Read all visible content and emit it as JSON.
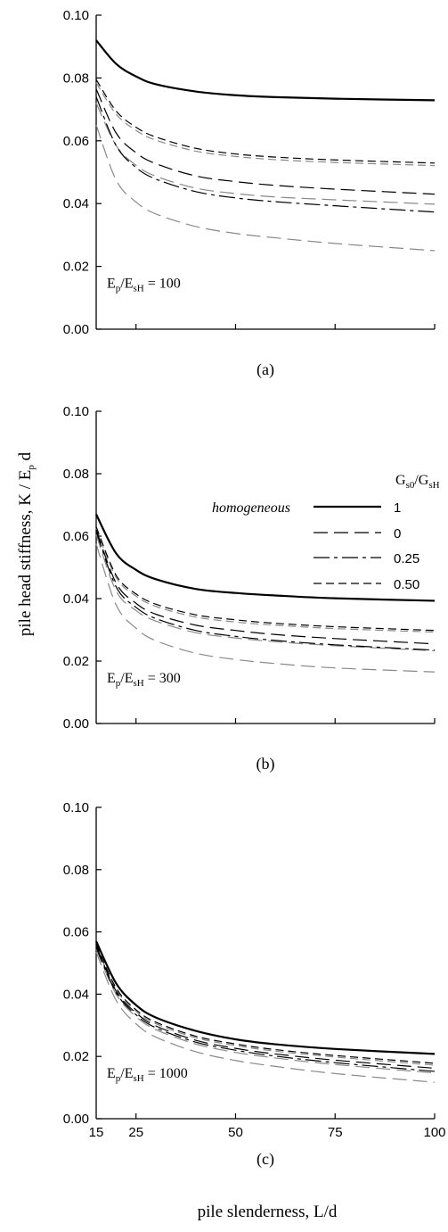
{
  "figure": {
    "ylabel": "pile head stiffness, K / E",
    "ylabel_sub": "p",
    "ylabel_tail": " d",
    "xlabel": "pile slenderness, L/d"
  },
  "legend": {
    "title": "G",
    "title_sub1": "s0",
    "title_mid": "/G",
    "title_sub2": "sH",
    "homogeneous_label": "homogeneous",
    "entries": [
      {
        "value": "1",
        "dash": "solid",
        "width": 2.2
      },
      {
        "value": "0",
        "dash": "long",
        "width": 1.2
      },
      {
        "value": "0.25",
        "dash": "longshort",
        "width": 1.2
      },
      {
        "value": "0.50",
        "dash": "medium",
        "width": 1.2
      }
    ]
  },
  "chart_data": [
    {
      "type": "line",
      "panel": "(a)",
      "annotation": {
        "pre": "E",
        "sub1": "p",
        "mid": "/E",
        "sub2": "sH",
        "post": " = 100"
      },
      "xlim": [
        15,
        100
      ],
      "ylim": [
        0,
        0.1
      ],
      "yticks": [
        "0.00",
        "0.02",
        "0.04",
        "0.06",
        "0.08",
        "0.10"
      ],
      "xticks": [],
      "x": [
        15,
        20,
        25,
        30,
        40,
        50,
        60,
        75,
        100
      ],
      "series": [
        {
          "style": "solid",
          "color": "#000000",
          "values": [
            0.092,
            0.0845,
            0.0805,
            0.078,
            0.0757,
            0.0745,
            0.0739,
            0.0734,
            0.0729
          ]
        },
        {
          "style": "medium",
          "color": "#000000",
          "values": [
            0.0795,
            0.0695,
            0.0643,
            0.0612,
            0.0576,
            0.0558,
            0.0548,
            0.0539,
            0.0529
          ]
        },
        {
          "style": "medium",
          "color": "#888888",
          "values": [
            0.0785,
            0.0685,
            0.0633,
            0.0602,
            0.0567,
            0.055,
            0.054,
            0.0531,
            0.0521
          ]
        },
        {
          "style": "long",
          "color": "#000000",
          "values": [
            0.0765,
            0.0625,
            0.0562,
            0.0527,
            0.0488,
            0.047,
            0.0458,
            0.0446,
            0.043
          ]
        },
        {
          "style": "longshort",
          "color": "#000000",
          "values": [
            0.074,
            0.0585,
            0.0515,
            0.0478,
            0.0438,
            0.0418,
            0.0406,
            0.0393,
            0.0373
          ]
        },
        {
          "style": "long",
          "color": "#888888",
          "values": [
            0.072,
            0.0585,
            0.0522,
            0.0487,
            0.0449,
            0.0432,
            0.0421,
            0.0412,
            0.0398
          ]
        },
        {
          "style": "long",
          "color": "#888888",
          "values": [
            0.065,
            0.0475,
            0.0405,
            0.0367,
            0.0327,
            0.0305,
            0.0291,
            0.0273,
            0.025
          ]
        }
      ]
    },
    {
      "type": "line",
      "panel": "(b)",
      "annotation": {
        "pre": "E",
        "sub1": "p",
        "mid": "/E",
        "sub2": "sH",
        "post": " = 300"
      },
      "xlim": [
        15,
        100
      ],
      "ylim": [
        0,
        0.1
      ],
      "yticks": [
        "0.00",
        "0.02",
        "0.04",
        "0.06",
        "0.08",
        "0.10"
      ],
      "xticks": [],
      "x": [
        15,
        20,
        25,
        30,
        40,
        50,
        60,
        75,
        100
      ],
      "series": [
        {
          "style": "solid",
          "color": "#000000",
          "values": [
            0.067,
            0.0545,
            0.0492,
            0.0462,
            0.0431,
            0.0418,
            0.041,
            0.0401,
            0.0393
          ]
        },
        {
          "style": "medium",
          "color": "#000000",
          "values": [
            0.063,
            0.0475,
            0.0415,
            0.0382,
            0.0348,
            0.0332,
            0.0321,
            0.031,
            0.0298
          ]
        },
        {
          "style": "medium",
          "color": "#888888",
          "values": [
            0.0625,
            0.0468,
            0.0408,
            0.0375,
            0.0341,
            0.0325,
            0.0315,
            0.0304,
            0.0293
          ]
        },
        {
          "style": "long",
          "color": "#000000",
          "values": [
            0.062,
            0.045,
            0.0385,
            0.035,
            0.0315,
            0.0298,
            0.0285,
            0.0272,
            0.0255
          ]
        },
        {
          "style": "longshort",
          "color": "#000000",
          "values": [
            0.0615,
            0.0438,
            0.0372,
            0.0336,
            0.0298,
            0.0279,
            0.0266,
            0.0252,
            0.0235
          ]
        },
        {
          "style": "long",
          "color": "#888888",
          "values": [
            0.0605,
            0.0425,
            0.0362,
            0.0328,
            0.0291,
            0.0274,
            0.0262,
            0.0249,
            0.0233
          ]
        },
        {
          "style": "long",
          "color": "#888888",
          "values": [
            0.0575,
            0.038,
            0.0305,
            0.0265,
            0.0225,
            0.0205,
            0.0192,
            0.0178,
            0.0165
          ]
        }
      ]
    },
    {
      "type": "line",
      "panel": "(c)",
      "annotation": {
        "pre": "E",
        "sub1": "p",
        "mid": "/E",
        "sub2": "sH",
        "post": " = 1000"
      },
      "xlim": [
        15,
        100
      ],
      "ylim": [
        0,
        0.1
      ],
      "yticks": [
        "0.00",
        "0.02",
        "0.04",
        "0.06",
        "0.08",
        "0.10"
      ],
      "xticks": [
        "15",
        "25",
        "50",
        "75",
        "100"
      ],
      "x": [
        15,
        20,
        25,
        30,
        40,
        50,
        60,
        75,
        100
      ],
      "series": [
        {
          "style": "solid",
          "color": "#000000",
          "values": [
            0.057,
            0.0435,
            0.0365,
            0.0325,
            0.0282,
            0.0255,
            0.0239,
            0.0224,
            0.0208
          ]
        },
        {
          "style": "medium",
          "color": "#000000",
          "values": [
            0.056,
            0.042,
            0.035,
            0.031,
            0.0265,
            0.024,
            0.0222,
            0.0203,
            0.0178
          ]
        },
        {
          "style": "medium",
          "color": "#888888",
          "values": [
            0.0555,
            0.0415,
            0.0345,
            0.0305,
            0.026,
            0.0235,
            0.0217,
            0.0198,
            0.0172
          ]
        },
        {
          "style": "long",
          "color": "#000000",
          "values": [
            0.0555,
            0.041,
            0.034,
            0.0298,
            0.0252,
            0.0226,
            0.0208,
            0.0188,
            0.0162
          ]
        },
        {
          "style": "longshort",
          "color": "#000000",
          "values": [
            0.055,
            0.0405,
            0.0334,
            0.0292,
            0.0246,
            0.022,
            0.0201,
            0.018,
            0.0152
          ]
        },
        {
          "style": "long",
          "color": "#888888",
          "values": [
            0.0545,
            0.04,
            0.0328,
            0.0286,
            0.024,
            0.0213,
            0.0195,
            0.0174,
            0.0147
          ]
        },
        {
          "style": "long",
          "color": "#888888",
          "values": [
            0.0535,
            0.038,
            0.0305,
            0.0262,
            0.0215,
            0.0187,
            0.0168,
            0.0145,
            0.0117
          ]
        }
      ]
    }
  ]
}
